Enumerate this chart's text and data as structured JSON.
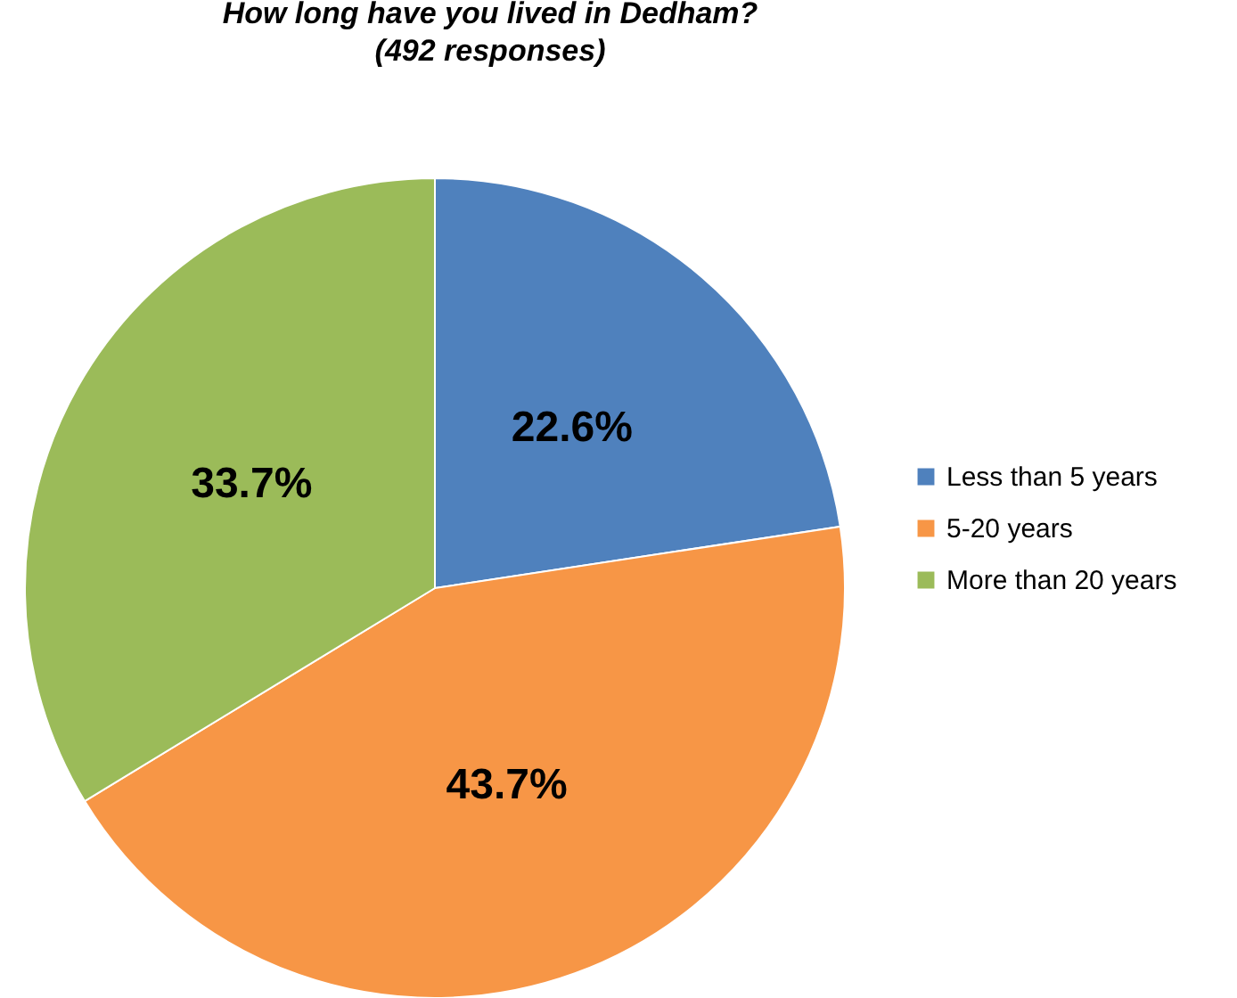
{
  "chart_data": {
    "type": "pie",
    "title": "How long have you lived in Dedham?",
    "subtitle": "(492 responses)",
    "categories": [
      "Less than 5 years",
      "5-20 years",
      "More than 20 years"
    ],
    "values": [
      22.6,
      43.7,
      33.7
    ],
    "colors": [
      "#4f81bd",
      "#f79646",
      "#9bbb59"
    ],
    "value_labels": [
      "22.6%",
      "43.7%",
      "33.7%"
    ],
    "legend": "right"
  }
}
